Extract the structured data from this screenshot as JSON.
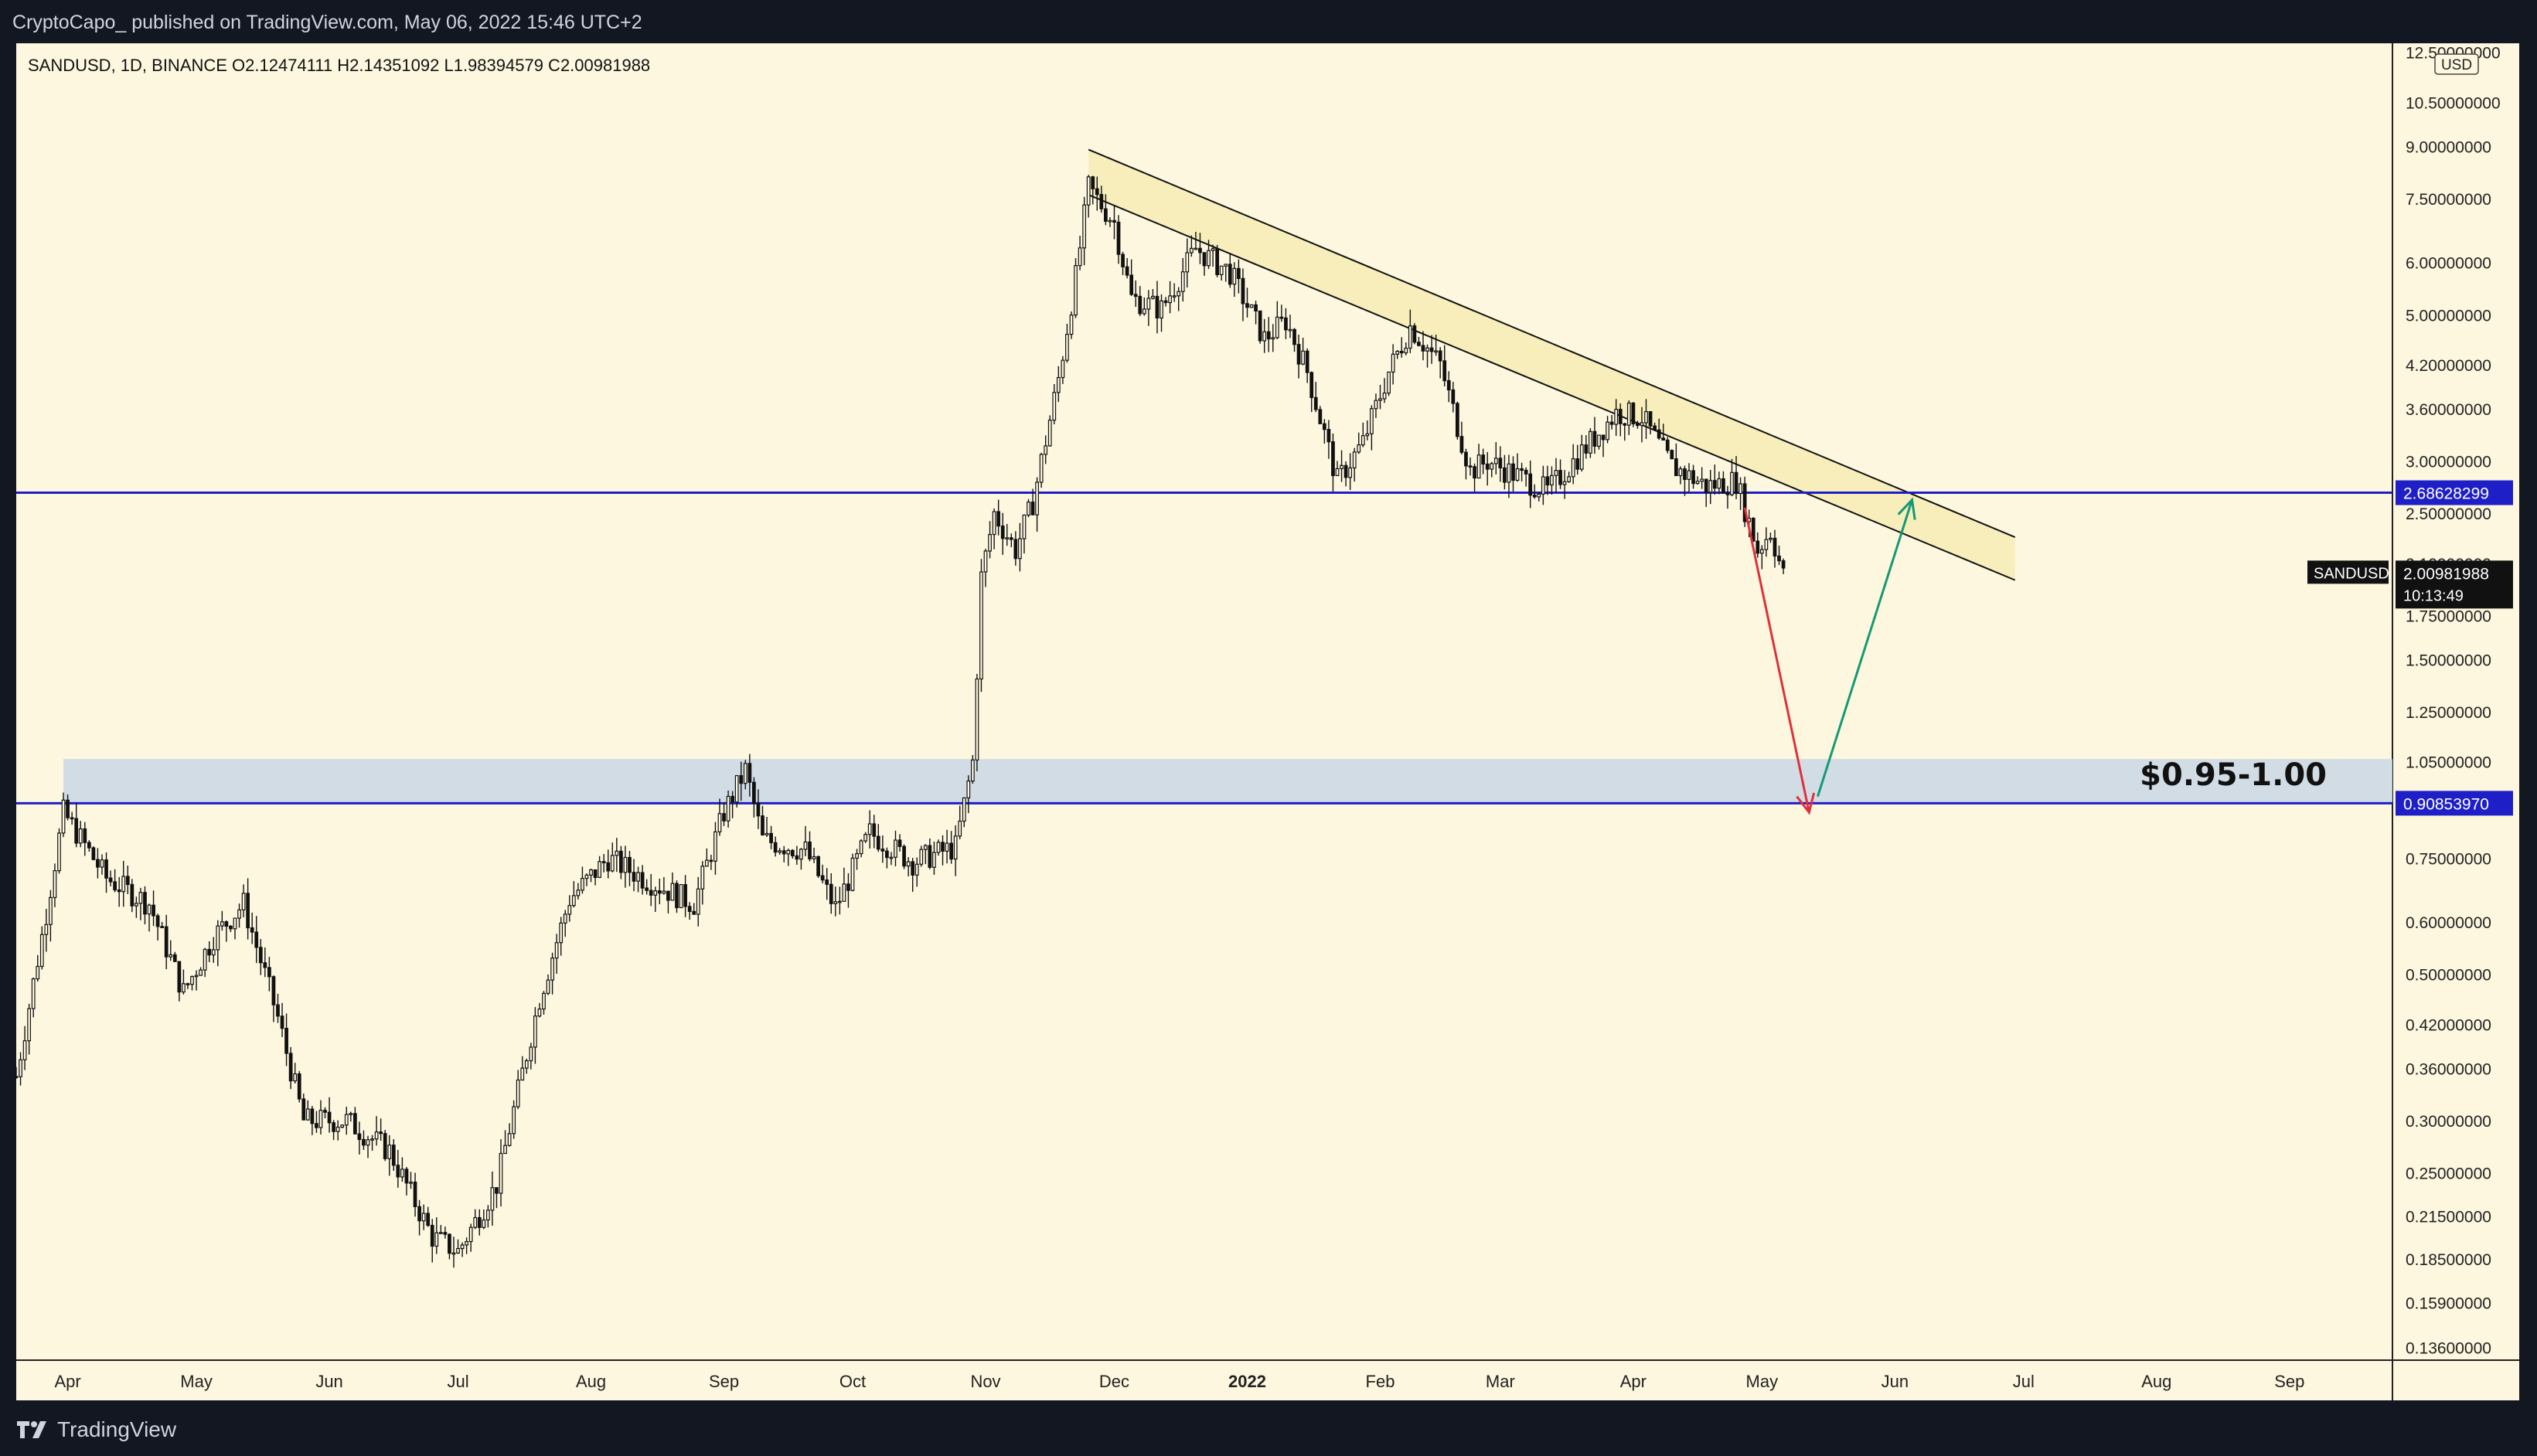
{
  "header": {
    "published_line": "CryptoCapo_  published on TradingView.com, May 06, 2022 15:46 UTC+2"
  },
  "symbol_info": {
    "symbol_line": "SANDUSD, 1D, BINANCE",
    "open": "O2.12474111",
    "high": "H2.14351092",
    "low": "L1.98394579",
    "close": "C2.00981988"
  },
  "price_axis": {
    "currency": "USD",
    "ticks": [
      "12.50000000",
      "10.50000000",
      "9.00000000",
      "7.50000000",
      "6.00000000",
      "5.00000000",
      "4.20000000",
      "3.60000000",
      "3.00000000",
      "2.50000000",
      "2.10000000",
      "1.75000000",
      "1.50000000",
      "1.25000000",
      "1.05000000",
      "0.75000000",
      "0.60000000",
      "0.50000000",
      "0.42000000",
      "0.36000000",
      "0.30000000",
      "0.25000000",
      "0.21500000",
      "0.18500000",
      "0.15900000",
      "0.13600000"
    ],
    "level_high_label": "2.68628299",
    "level_low_label": "0.90853970",
    "last_price_symbol": "SANDUSD",
    "last_price": "2.00981988",
    "countdown": "10:13:49"
  },
  "time_axis": {
    "ticks": [
      "Apr",
      "May",
      "Jun",
      "Jul",
      "Aug",
      "Sep",
      "Oct",
      "Nov",
      "Dec",
      "2022",
      "Feb",
      "Mar",
      "Apr",
      "May",
      "Jun",
      "Jul",
      "Aug",
      "Sep"
    ]
  },
  "annotations": {
    "zone_label": "$0.95-1.00"
  },
  "footer": {
    "brand": "TradingView"
  },
  "colors": {
    "background": "#fdf7df",
    "candle_body": "#000000",
    "horizontal_level": "#1f1fc8",
    "zone_fill": "#ccd8e6",
    "channel_fill": "#f7eebc",
    "arrow_down": "#e0303a",
    "arrow_up": "#159973"
  },
  "chart_data": {
    "type": "candlestick",
    "symbol": "SANDUSD",
    "interval": "1D",
    "exchange": "BINANCE",
    "y_scale": "log",
    "ylim": [
      0.13,
      12.9
    ],
    "x_range": [
      "2021-03-20",
      "2022-09-25"
    ],
    "close_path": [
      [
        "2021-03-20",
        0.35
      ],
      [
        "2021-03-27",
        0.62
      ],
      [
        "2021-03-31",
        0.88
      ],
      [
        "2021-04-10",
        0.7
      ],
      [
        "2021-04-20",
        0.64
      ],
      [
        "2021-04-28",
        0.47
      ],
      [
        "2021-05-05",
        0.57
      ],
      [
        "2021-05-12",
        0.64
      ],
      [
        "2021-05-20",
        0.43
      ],
      [
        "2021-05-26",
        0.3
      ],
      [
        "2021-06-05",
        0.3
      ],
      [
        "2021-06-15",
        0.27
      ],
      [
        "2021-06-25",
        0.2
      ],
      [
        "2021-07-01",
        0.19
      ],
      [
        "2021-07-10",
        0.24
      ],
      [
        "2021-07-20",
        0.46
      ],
      [
        "2021-07-27",
        0.65
      ],
      [
        "2021-08-05",
        0.75
      ],
      [
        "2021-08-15",
        0.69
      ],
      [
        "2021-08-25",
        0.64
      ],
      [
        "2021-09-01",
        0.88
      ],
      [
        "2021-09-06",
        1.02
      ],
      [
        "2021-09-10",
        0.8
      ],
      [
        "2021-09-20",
        0.77
      ],
      [
        "2021-09-27",
        0.63
      ],
      [
        "2021-10-05",
        0.82
      ],
      [
        "2021-10-15",
        0.74
      ],
      [
        "2021-10-25",
        0.78
      ],
      [
        "2021-10-29",
        1.05
      ],
      [
        "2021-10-31",
        2.0
      ],
      [
        "2021-11-03",
        2.5
      ],
      [
        "2021-11-08",
        2.2
      ],
      [
        "2021-11-12",
        2.6
      ],
      [
        "2021-11-18",
        4.0
      ],
      [
        "2021-11-22",
        5.7
      ],
      [
        "2021-11-25",
        7.8
      ],
      [
        "2021-12-01",
        6.9
      ],
      [
        "2021-12-05",
        5.3
      ],
      [
        "2021-12-12",
        5.1
      ],
      [
        "2021-12-20",
        6.3
      ],
      [
        "2021-12-28",
        5.8
      ],
      [
        "2022-01-05",
        4.6
      ],
      [
        "2022-01-10",
        4.9
      ],
      [
        "2022-01-15",
        4.1
      ],
      [
        "2022-01-22",
        2.8
      ],
      [
        "2022-01-28",
        3.2
      ],
      [
        "2022-02-03",
        4.1
      ],
      [
        "2022-02-08",
        4.8
      ],
      [
        "2022-02-15",
        4.2
      ],
      [
        "2022-02-22",
        2.9
      ],
      [
        "2022-02-26",
        3.0
      ],
      [
        "2022-03-05",
        2.85
      ],
      [
        "2022-03-12",
        2.7
      ],
      [
        "2022-03-20",
        3.1
      ],
      [
        "2022-03-28",
        3.55
      ],
      [
        "2022-04-03",
        3.5
      ],
      [
        "2022-04-10",
        2.95
      ],
      [
        "2022-04-18",
        2.75
      ],
      [
        "2022-04-25",
        2.8
      ],
      [
        "2022-04-30",
        2.2
      ],
      [
        "2022-05-03",
        2.35
      ],
      [
        "2022-05-06",
        2.01
      ]
    ],
    "levels": [
      {
        "price": 2.68628299
      },
      {
        "price": 0.9085397
      }
    ],
    "zone": {
      "from": 0.91,
      "to": 1.06,
      "label": "$0.95-1.00",
      "start": "2021-03-31"
    },
    "descending_channel": {
      "upper": [
        [
          "2021-11-25",
          8.9
        ],
        [
          "2022-06-29",
          2.3
        ]
      ],
      "lower": [
        [
          "2021-11-25",
          7.6
        ],
        [
          "2022-06-29",
          1.98
        ]
      ]
    },
    "projection": [
      {
        "from": [
          "2022-04-27",
          2.55
        ],
        "to": [
          "2022-05-12",
          0.88
        ]
      },
      {
        "from": [
          "2022-05-14",
          0.93
        ],
        "to": [
          "2022-06-05",
          2.62
        ]
      }
    ]
  }
}
